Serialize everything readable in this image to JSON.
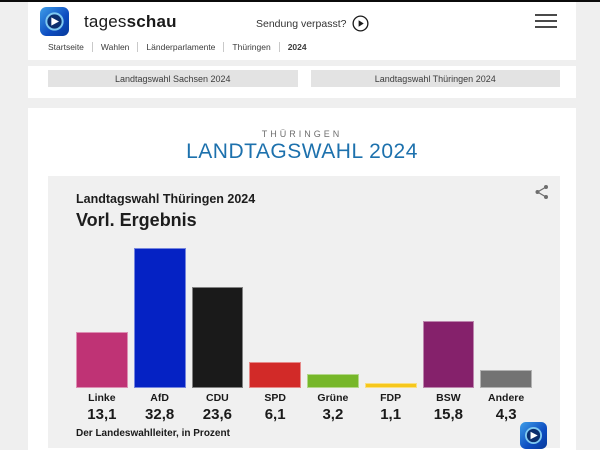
{
  "header": {
    "brand_regular": "tages",
    "brand_bold": "schau",
    "missed_label": "Sendung verpasst?",
    "breadcrumb": [
      {
        "label": "Startseite",
        "active": false
      },
      {
        "label": "Wahlen",
        "active": false
      },
      {
        "label": "Länderparlamente",
        "active": false
      },
      {
        "label": "Thüringen",
        "active": false
      },
      {
        "label": "2024",
        "active": true
      }
    ]
  },
  "tabs": [
    {
      "label": "Landtagswahl Sachsen 2024"
    },
    {
      "label": "Landtagswahl Thüringen 2024"
    }
  ],
  "page": {
    "kicker": "THÜRINGEN",
    "title": "LANDTAGSWAHL 2024"
  },
  "chart_card": {
    "subtitle": "Landtagswahl Thüringen 2024",
    "title": "Vorl. Ergebnis",
    "source": "Der Landeswahlleiter, in Prozent"
  },
  "chart_data": {
    "type": "bar",
    "title": "Vorl. Ergebnis",
    "subtitle": "Landtagswahl Thüringen 2024",
    "categories": [
      "Linke",
      "AfD",
      "CDU",
      "SPD",
      "Grüne",
      "FDP",
      "BSW",
      "Andere"
    ],
    "values": [
      13.1,
      32.8,
      23.6,
      6.1,
      3.2,
      1.1,
      15.8,
      4.3
    ],
    "value_labels": [
      "13,1",
      "32,8",
      "23,6",
      "6,1",
      "3,2",
      "1,1",
      "15,8",
      "4,3"
    ],
    "colors": [
      "#bf3375",
      "#0522c4",
      "#1a1a1a",
      "#d22a28",
      "#76b729",
      "#f6c71c",
      "#85216b",
      "#737373"
    ],
    "unit": "Prozent",
    "source": "Der Landeswahlleiter, in Prozent",
    "ylim": [
      0,
      32.8
    ],
    "grid": false,
    "legend": "none"
  },
  "icons": {
    "brand_logo": "tagesschau-globe",
    "play": "play-circle",
    "menu": "hamburger",
    "share": "share-nodes"
  },
  "colors": {
    "title_blue": "#1d71ad",
    "card_bg": "#f0f0f0",
    "page_bg": "#efefef",
    "tab_bg": "#e3e3e3"
  }
}
